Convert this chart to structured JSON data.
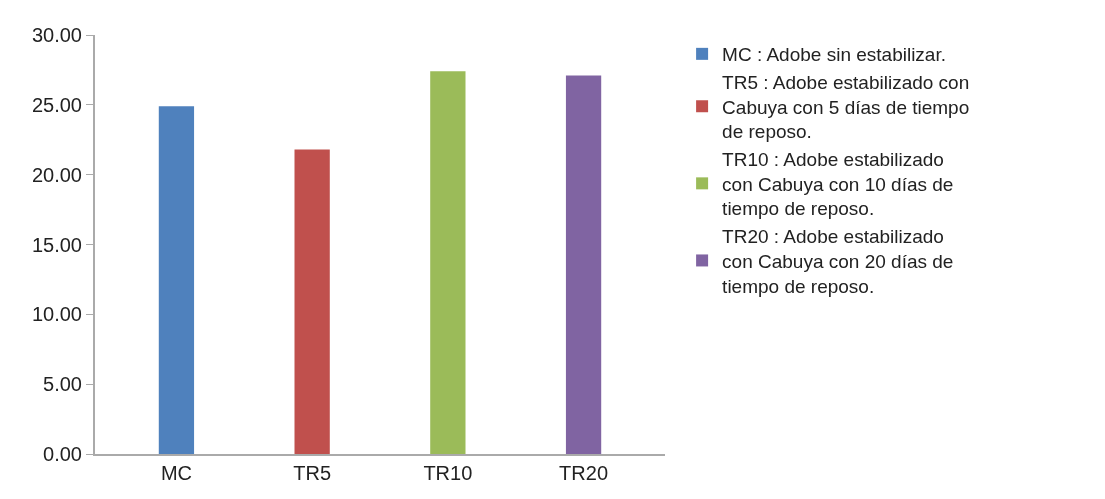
{
  "chart_data": {
    "type": "bar",
    "categories": [
      "MC",
      "TR5",
      "TR10",
      "TR20"
    ],
    "series": [
      {
        "name": "MC : Adobe sin estabilizar.",
        "color": "#4f81bd",
        "values": [
          24.9,
          null,
          null,
          null
        ]
      },
      {
        "name": "TR5 : Adobe estabilizado con Cabuya con 5 días de tiempo de reposo.",
        "color": "#c0504d",
        "values": [
          null,
          21.8,
          null,
          null
        ]
      },
      {
        "name": "TR10 : Adobe estabilizado con Cabuya con 10 días de tiempo de reposo.",
        "color": "#9bbb59",
        "values": [
          null,
          null,
          27.4,
          null
        ]
      },
      {
        "name": "TR20 : Adobe estabilizado con Cabuya con 20 días de tiempo de reposo.",
        "color": "#8064a2",
        "values": [
          null,
          null,
          null,
          27.1
        ]
      }
    ],
    "ylim": [
      0,
      30
    ],
    "yticks": [
      {
        "value": 0,
        "label": "0.00"
      },
      {
        "value": 5,
        "label": "5.00"
      },
      {
        "value": 10,
        "label": "10.00"
      },
      {
        "value": 15,
        "label": "15.00"
      },
      {
        "value": 20,
        "label": "20.00"
      },
      {
        "value": 25,
        "label": "25.00"
      },
      {
        "value": 30,
        "label": "30.00"
      }
    ],
    "grid": false,
    "legend": "right"
  }
}
